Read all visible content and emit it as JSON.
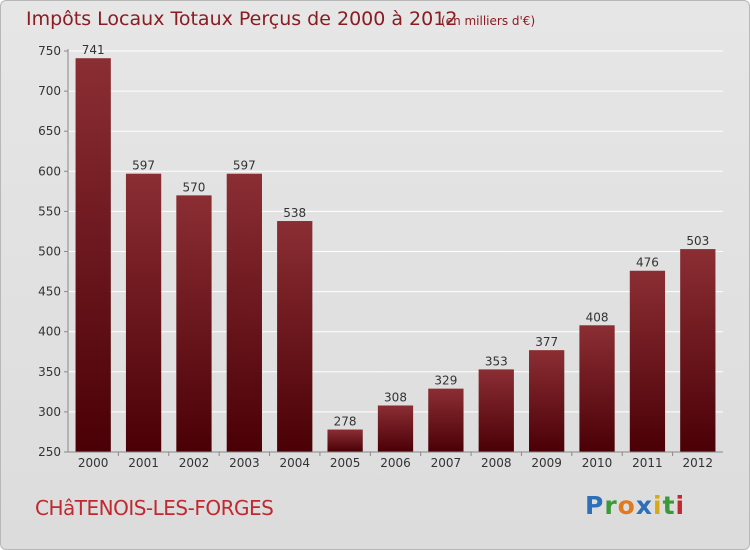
{
  "page": {
    "title": "Impôts Locaux Totaux Perçus de 2000 à 2012",
    "subtitle": "(en milliers d'€)",
    "commune": "CHâTENOIS-LES-FORGES",
    "logo": {
      "letters": [
        "P",
        "r",
        "o",
        "x",
        "i",
        "t",
        "i"
      ],
      "colors": [
        "#2d6fb8",
        "#3a9a3a",
        "#e07a1f",
        "#2d6fb8",
        "#d8a818",
        "#3a9a3a",
        "#c0292f"
      ]
    }
  },
  "chart_data": {
    "type": "bar",
    "title": "Impôts Locaux Totaux Perçus de 2000 à 2012",
    "subtitle": "(en milliers d'€)",
    "xlabel": "",
    "ylabel": "",
    "categories": [
      "2000",
      "2001",
      "2002",
      "2003",
      "2004",
      "2005",
      "2006",
      "2007",
      "2008",
      "2009",
      "2010",
      "2011",
      "2012"
    ],
    "values": [
      741,
      597,
      570,
      597,
      538,
      278,
      308,
      329,
      353,
      377,
      408,
      476,
      503
    ],
    "ylim": [
      250,
      750
    ],
    "yticks": [
      250,
      300,
      350,
      400,
      450,
      500,
      550,
      600,
      650,
      700,
      750
    ],
    "grid": true,
    "colors": {
      "bar_top": "#8b2e34",
      "bar_bottom": "#4a0006",
      "grid": "#ffffff",
      "axis": "#888888"
    }
  }
}
